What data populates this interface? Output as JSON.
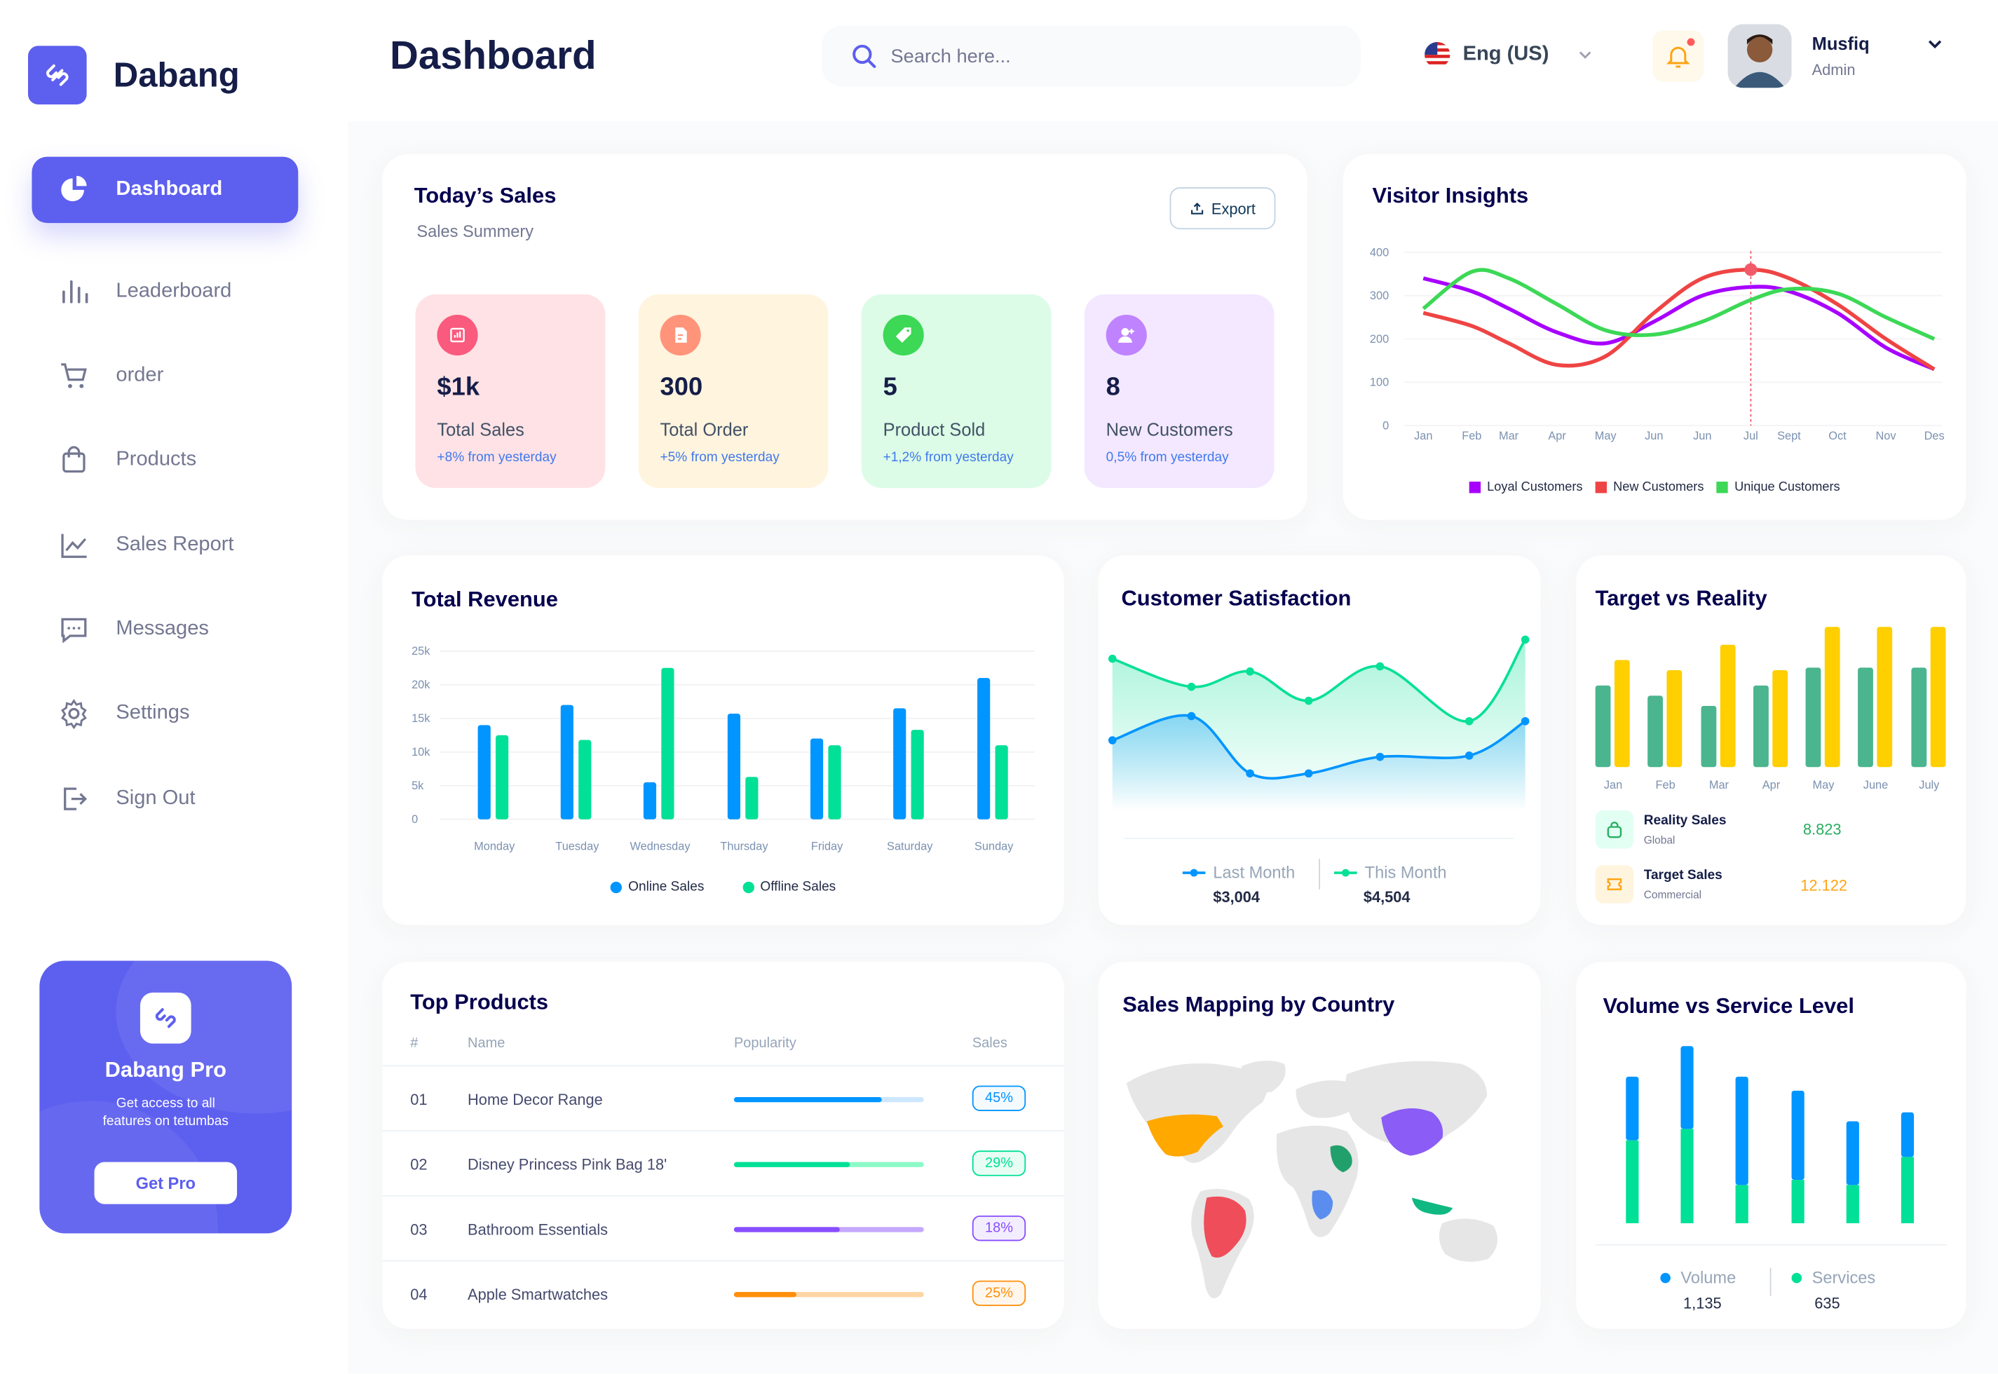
{
  "brand": {
    "name": "Dabang",
    "accent": "#5d5fef"
  },
  "header": {
    "title": "Dashboard",
    "search_placeholder": "Search here...",
    "language": "Eng (US)",
    "user_name": "Musfiq",
    "user_role": "Admin"
  },
  "sidebar": {
    "items": [
      {
        "label": "Dashboard",
        "icon": "pie-chart-icon",
        "active": true
      },
      {
        "label": "Leaderboard",
        "icon": "leaderboard-icon"
      },
      {
        "label": "order",
        "icon": "cart-icon"
      },
      {
        "label": "Products",
        "icon": "shopping-bag-icon"
      },
      {
        "label": "Sales Report",
        "icon": "line-chart-icon"
      },
      {
        "label": "Messages",
        "icon": "message-icon"
      },
      {
        "label": "Settings",
        "icon": "gear-icon"
      },
      {
        "label": "Sign Out",
        "icon": "sign-out-icon"
      }
    ],
    "promo": {
      "title": "Dabang Pro",
      "text1": "Get access to all",
      "text2": "features on tetumbas",
      "button": "Get Pro"
    }
  },
  "todays_sales": {
    "title": "Today’s Sales",
    "subtitle": "Sales Summery",
    "export": "Export",
    "stats": [
      {
        "value": "$1k",
        "label": "Total Sales",
        "change": "+8% from yesterday",
        "bg": "#ffe2e5",
        "icon_bg": "#fa5a7d",
        "icon": "bar-chart-icon"
      },
      {
        "value": "300",
        "label": "Total Order",
        "change": "+5% from yesterday",
        "bg": "#fff4de",
        "icon_bg": "#ff947a",
        "icon": "document-icon"
      },
      {
        "value": "5",
        "label": "Product Sold",
        "change": "+1,2% from yesterday",
        "bg": "#dcfce7",
        "icon_bg": "#3cd856",
        "icon": "tag-icon"
      },
      {
        "value": "8",
        "label": "New Customers",
        "change": "0,5% from yesterday",
        "bg": "#f3e8ff",
        "icon_bg": "#bf83ff",
        "icon": "add-user-icon"
      }
    ]
  },
  "chart_data": [
    {
      "id": "visitor",
      "type": "line",
      "title": "Visitor Insights",
      "ylim": [
        0,
        400
      ],
      "yticks": [
        "0",
        "100",
        "200",
        "300",
        "400"
      ],
      "categories": [
        "Jan",
        "Feb",
        "Mar",
        "Apr",
        "May",
        "Jun",
        "Jun",
        "Jul",
        "Sept",
        "Oct",
        "Nov",
        "Des"
      ],
      "highlight": {
        "category": "Jul",
        "series": "New Customers"
      },
      "legend": "bottom",
      "series": [
        {
          "name": "Loyal Customers",
          "color": "#a700ff",
          "values": [
            340,
            310,
            270,
            215,
            190,
            240,
            300,
            320,
            310,
            260,
            180,
            130
          ]
        },
        {
          "name": "New Customers",
          "color": "#ef4444",
          "values": [
            260,
            230,
            190,
            140,
            160,
            260,
            340,
            360,
            340,
            280,
            200,
            130
          ]
        },
        {
          "name": "Unique Customers",
          "color": "#3cd856",
          "values": [
            270,
            355,
            340,
            280,
            220,
            210,
            240,
            290,
            315,
            305,
            250,
            200
          ]
        }
      ]
    },
    {
      "id": "revenue",
      "type": "bar",
      "title": "Total Revenue",
      "ylim": [
        0,
        25000
      ],
      "yticks": [
        "0",
        "5k",
        "10k",
        "15k",
        "20k",
        "25k"
      ],
      "categories": [
        "Monday",
        "Tuesday",
        "Wednesday",
        "Thursday",
        "Friday",
        "Saturday",
        "Sunday"
      ],
      "legend": "bottom",
      "series": [
        {
          "name": "Online Sales",
          "color": "#0095ff",
          "values": [
            14000,
            17000,
            5500,
            15700,
            12000,
            16500,
            21000
          ]
        },
        {
          "name": "Offline Sales",
          "color": "#00e096",
          "values": [
            12500,
            11800,
            22500,
            6300,
            11000,
            13300,
            11000
          ]
        }
      ]
    },
    {
      "id": "satisfaction",
      "type": "area",
      "title": "Customer Satisfaction",
      "legend": "bottom",
      "series": [
        {
          "name": "Last Month",
          "color": "#0095ff",
          "total": "$3,004",
          "values": [
            59,
            78,
            33,
            33,
            46,
            47,
            74
          ]
        },
        {
          "name": "This Month",
          "color": "#07e098",
          "total": "$4,504",
          "values": [
            123,
            101,
            113,
            90,
            117,
            74,
            138
          ]
        }
      ]
    },
    {
      "id": "target",
      "type": "bar",
      "title": "Target vs Reality",
      "categories": [
        "Jan",
        "Feb",
        "Mar",
        "Apr",
        "May",
        "June",
        "July"
      ],
      "series": [
        {
          "name": "Reality Sales",
          "sub": "Global",
          "total": "8.823",
          "color": "#4ab58e",
          "values": [
            64,
            56,
            48,
            64,
            78,
            78,
            78
          ]
        },
        {
          "name": "Target Sales",
          "sub": "Commercial",
          "total": "12.122",
          "color": "#ffcf00",
          "values": [
            84,
            76,
            96,
            76,
            110,
            110,
            110
          ]
        }
      ]
    },
    {
      "id": "volume",
      "type": "stacked-bar",
      "title": "Volume vs Service Level",
      "legend": "bottom",
      "series": [
        {
          "name": "Volume",
          "total": "1,135",
          "color": "#0095ff",
          "values": [
            50,
            65,
            85,
            70,
            50,
            35
          ]
        },
        {
          "name": "Services",
          "total": "635",
          "color": "#00e096",
          "values": [
            65,
            74,
            30,
            34,
            30,
            52
          ]
        }
      ]
    }
  ],
  "top_products": {
    "title": "Top Products",
    "columns": [
      "#",
      "Name",
      "Popularity",
      "Sales"
    ],
    "rows": [
      {
        "num": "01",
        "name": "Home Decor Range",
        "popularity": 0.78,
        "sales": "45%",
        "color": "#0095ff",
        "light": "#cde7ff"
      },
      {
        "num": "02",
        "name": "Disney Princess Pink Bag 18'",
        "popularity": 0.61,
        "sales": "29%",
        "color": "#00e096",
        "light": "#8cfac7"
      },
      {
        "num": "03",
        "name": "Bathroom Essentials",
        "popularity": 0.56,
        "sales": "18%",
        "color": "#884dff",
        "light": "#c5a8ff"
      },
      {
        "num": "04",
        "name": "Apple Smartwatches",
        "popularity": 0.33,
        "sales": "25%",
        "color": "#ff8f0d",
        "light": "#ffd5a4"
      }
    ]
  },
  "sales_map": {
    "title": "Sales Mapping by Country"
  }
}
